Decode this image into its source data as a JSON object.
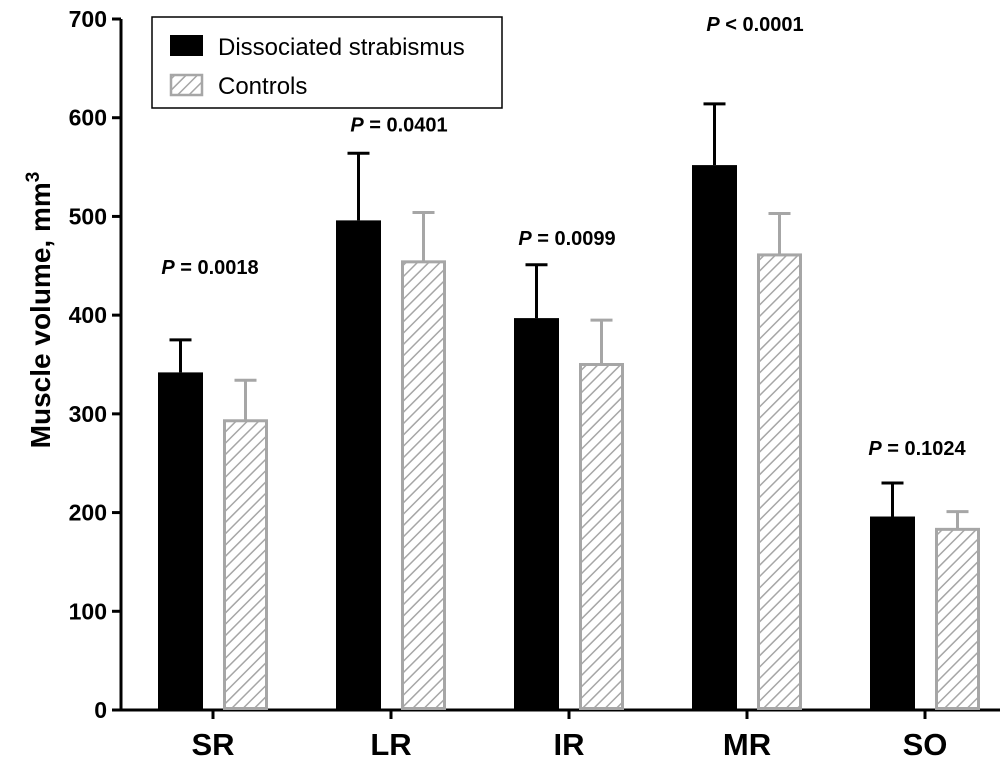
{
  "chart_data": {
    "type": "bar",
    "categories": [
      "SR",
      "LR",
      "IR",
      "MR",
      "SO"
    ],
    "series": [
      {
        "name": "Dissociated strabismus",
        "values": [
          342,
          496,
          397,
          552,
          196
        ],
        "error": [
          33,
          68,
          54,
          62,
          34
        ],
        "color": "#000000",
        "pattern": "solid"
      },
      {
        "name": "Controls",
        "values": [
          293,
          454,
          350,
          461,
          183
        ],
        "error": [
          41,
          50,
          45,
          42,
          18
        ],
        "color": "#a6a6a6",
        "pattern": "diagonal-hatch"
      }
    ],
    "annotations": [
      {
        "category": "SR",
        "italic": "P",
        "text": " = 0.0018"
      },
      {
        "category": "LR",
        "italic": "P",
        "text": " = 0.0401"
      },
      {
        "category": "IR",
        "italic": "P",
        "text": " = 0.0099"
      },
      {
        "category": "MR",
        "italic": "P",
        "text": " < 0.0001"
      },
      {
        "category": "SO",
        "italic": "P",
        "text": " = 0.1024"
      }
    ],
    "ylabel_main": "Muscle volume, mm",
    "ylabel_sup": "3",
    "xlabel": "",
    "ylim": [
      0,
      700
    ],
    "yticks": [
      "0",
      "100",
      "200",
      "300",
      "400",
      "500",
      "600",
      "700"
    ],
    "grid": false,
    "legend_position": "top-left"
  }
}
